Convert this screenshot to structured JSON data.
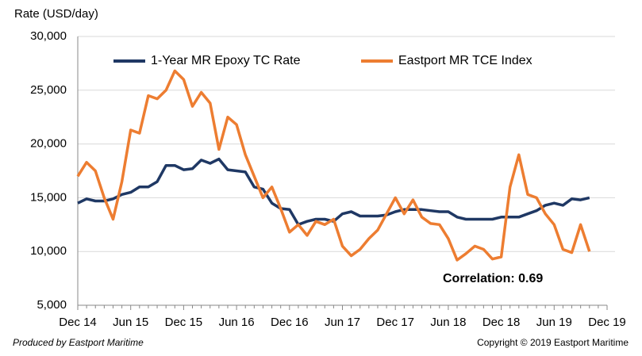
{
  "chart_data": {
    "type": "line",
    "y_label": "Rate (USD/day)",
    "categories": [
      "Dec 14",
      null,
      null,
      null,
      null,
      null,
      "Jun 15",
      null,
      null,
      null,
      null,
      null,
      "Dec 15",
      null,
      null,
      null,
      null,
      null,
      "Jun 16",
      null,
      null,
      null,
      null,
      null,
      "Dec 16",
      null,
      null,
      null,
      null,
      null,
      "Jun 17",
      null,
      null,
      null,
      null,
      null,
      "Dec 17",
      null,
      null,
      null,
      null,
      null,
      "Jun 18",
      null,
      null,
      null,
      null,
      null,
      "Dec 18",
      null,
      null,
      null,
      null,
      null,
      "Jun 19",
      null,
      null,
      null,
      null,
      null,
      "Dec 19"
    ],
    "series": [
      {
        "name": "1-Year MR Epoxy TC Rate",
        "color": "#1f3864",
        "values": [
          14500,
          14900,
          14700,
          14700,
          14900,
          15300,
          15500,
          16000,
          16000,
          16500,
          18000,
          18000,
          17600,
          17700,
          18500,
          18200,
          18600,
          17600,
          17500,
          17400,
          16000,
          15800,
          14500,
          14000,
          13900,
          12500,
          12800,
          13000,
          13000,
          12800,
          13500,
          13700,
          13300,
          13300,
          13300,
          13400,
          13700,
          13900,
          13900,
          13900,
          13800,
          13700,
          13700,
          13200,
          13000,
          13000,
          13000,
          13000,
          13200,
          13200,
          13200,
          13500,
          13800,
          14300,
          14500,
          14300,
          14900,
          14800,
          15000,
          null,
          null
        ]
      },
      {
        "name": "Eastport MR TCE Index",
        "color": "#ed7d31",
        "values": [
          17000,
          18300,
          17500,
          15000,
          13000,
          16500,
          21300,
          21000,
          24500,
          24200,
          25000,
          26800,
          26000,
          23500,
          24800,
          23800,
          19500,
          22500,
          21800,
          19000,
          17000,
          15000,
          16000,
          14000,
          11800,
          12500,
          11500,
          12800,
          12500,
          13000,
          10500,
          9600,
          10200,
          11200,
          12000,
          13500,
          15000,
          13500,
          14800,
          13200,
          12600,
          12500,
          11200,
          9200,
          9800,
          10500,
          10200,
          9300,
          9500,
          16000,
          19000,
          15300,
          15000,
          13500,
          12500,
          10200,
          9900,
          12500,
          10000,
          null,
          null
        ]
      }
    ],
    "ylim": [
      5000,
      30000
    ],
    "yticks": [
      {
        "value": 5000,
        "label": "5,000"
      },
      {
        "value": 10000,
        "label": "10,000"
      },
      {
        "value": 15000,
        "label": "15,000"
      },
      {
        "value": 20000,
        "label": "20,000"
      },
      {
        "value": 25000,
        "label": "25,000"
      },
      {
        "value": 30000,
        "label": "30,000"
      }
    ],
    "grid": true,
    "annotation": "Correlation: 0.69",
    "footer_left": "Produced by Eastport Maritime",
    "footer_right": "Copyright © 2019 Eastport Maritime"
  }
}
